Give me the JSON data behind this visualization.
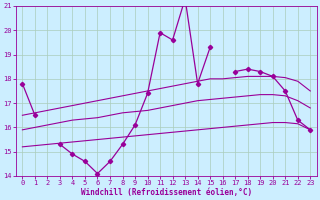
{
  "xlabel": "Windchill (Refroidissement éolien,°C)",
  "background_color": "#cceeff",
  "line_color": "#990099",
  "grid_color": "#aaccbb",
  "x_values": [
    0,
    1,
    2,
    3,
    4,
    5,
    6,
    7,
    8,
    9,
    10,
    11,
    12,
    13,
    14,
    15,
    16,
    17,
    18,
    19,
    20,
    21,
    22,
    23
  ],
  "y_main": [
    17.8,
    16.5,
    null,
    15.3,
    14.9,
    14.6,
    14.1,
    14.6,
    15.3,
    16.1,
    17.4,
    19.9,
    19.6,
    21.3,
    17.8,
    19.3,
    null,
    18.3,
    18.4,
    18.3,
    18.1,
    17.5,
    16.3,
    15.9
  ],
  "y_trend_upper": [
    16.5,
    16.6,
    16.7,
    16.8,
    16.9,
    17.0,
    17.1,
    17.2,
    17.3,
    17.4,
    17.5,
    17.6,
    17.7,
    17.8,
    17.9,
    18.0,
    18.0,
    18.05,
    18.1,
    18.1,
    18.1,
    18.05,
    17.9,
    17.5
  ],
  "y_trend_mid": [
    15.9,
    16.0,
    16.1,
    16.2,
    16.3,
    16.35,
    16.4,
    16.5,
    16.6,
    16.65,
    16.7,
    16.8,
    16.9,
    17.0,
    17.1,
    17.15,
    17.2,
    17.25,
    17.3,
    17.35,
    17.35,
    17.3,
    17.1,
    16.8
  ],
  "y_trend_lower": [
    15.2,
    15.25,
    15.3,
    15.35,
    15.4,
    15.45,
    15.5,
    15.55,
    15.6,
    15.65,
    15.7,
    15.75,
    15.8,
    15.85,
    15.9,
    15.95,
    16.0,
    16.05,
    16.1,
    16.15,
    16.2,
    16.2,
    16.15,
    15.9
  ],
  "ylim": [
    14,
    21
  ],
  "xlim": [
    -0.5,
    23.5
  ],
  "yticks": [
    14,
    15,
    16,
    17,
    18,
    19,
    20,
    21
  ],
  "xticks": [
    0,
    1,
    2,
    3,
    4,
    5,
    6,
    7,
    8,
    9,
    10,
    11,
    12,
    13,
    14,
    15,
    16,
    17,
    18,
    19,
    20,
    21,
    22,
    23
  ],
  "xlabel_fontsize": 5.5,
  "tick_fontsize": 5.0
}
